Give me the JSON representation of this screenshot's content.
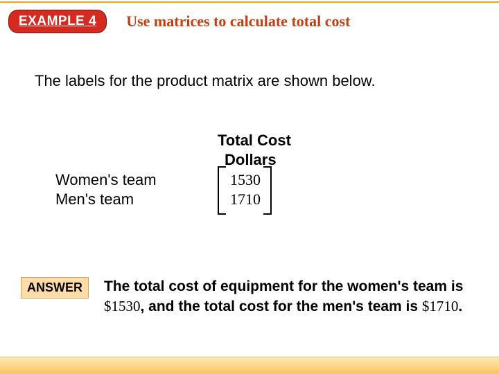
{
  "colors": {
    "accent_orange": "#f5a71c",
    "badge_red": "#d42a1f",
    "title_rust": "#c23f13",
    "answer_bg": "#ffdca8",
    "bottom_band_top": "#ffe9b8",
    "bottom_band_bottom": "#f7c560",
    "text_black": "#000000"
  },
  "header": {
    "badge": "EXAMPLE 4",
    "title": "Use matrices to calculate total cost"
  },
  "intro": "The labels for the product matrix are shown below.",
  "matrix": {
    "title": "Total Cost",
    "column_label": "Dollars",
    "row_labels": [
      "Women's team",
      "Men's team"
    ],
    "values": [
      1530,
      1710
    ],
    "value_fontsize": 22,
    "bracket_color": "#000000"
  },
  "answer": {
    "badge": "ANSWER",
    "text_parts": {
      "p1": "The total cost of equipment for the women's team is ",
      "m1": "$1530",
      "p2": ", and the total cost for the men's team is ",
      "m2": "$1710",
      "p3": "."
    }
  }
}
